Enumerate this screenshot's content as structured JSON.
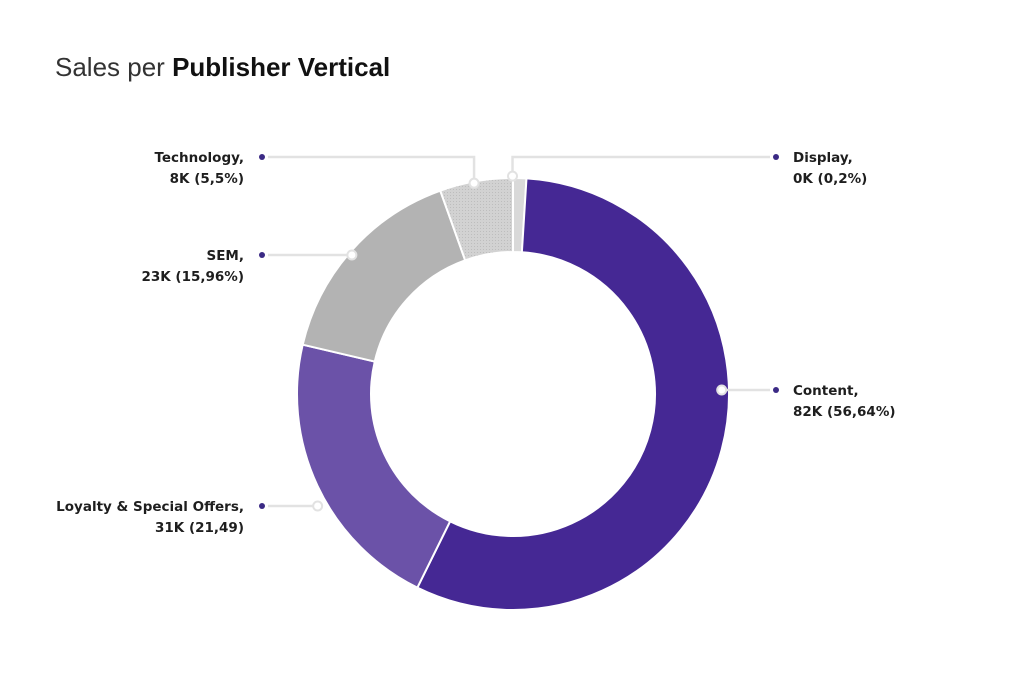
{
  "title": {
    "prefix": "Sales per",
    "emphasis": "Publisher Vertical"
  },
  "colors": {
    "Content": "#452894",
    "Loyalty & Special Offers": "#6b52a8",
    "SEM": "#b3b3b3",
    "Technology": "#d0d0d0",
    "Display": "#d9d9d9",
    "marker": "#3b2a85",
    "leader": "#e2e2e2"
  },
  "chart_data": {
    "type": "pie",
    "variant": "donut",
    "title": "Sales per Publisher Vertical",
    "slices": [
      {
        "name": "Display",
        "percent": 0.2,
        "value_label": "0K",
        "line1": "Display,",
        "line2": "0K (0,2%)",
        "side": "right"
      },
      {
        "name": "Content",
        "percent": 56.64,
        "value_label": "82K",
        "line1": "Content,",
        "line2": "82K (56,64%)",
        "side": "right"
      },
      {
        "name": "Loyalty & Special Offers",
        "percent": 21.49,
        "value_label": "31K",
        "line1": "Loyalty & Special Offers,",
        "line2": "31K (21,49)",
        "side": "left"
      },
      {
        "name": "SEM",
        "percent": 15.96,
        "value_label": "23K",
        "line1": "SEM,",
        "line2": "23K (15,96%)",
        "side": "left"
      },
      {
        "name": "Technology",
        "percent": 5.5,
        "value_label": "8K",
        "line1": "Technology,",
        "line2": "8K (5,5%)",
        "side": "left"
      }
    ]
  }
}
